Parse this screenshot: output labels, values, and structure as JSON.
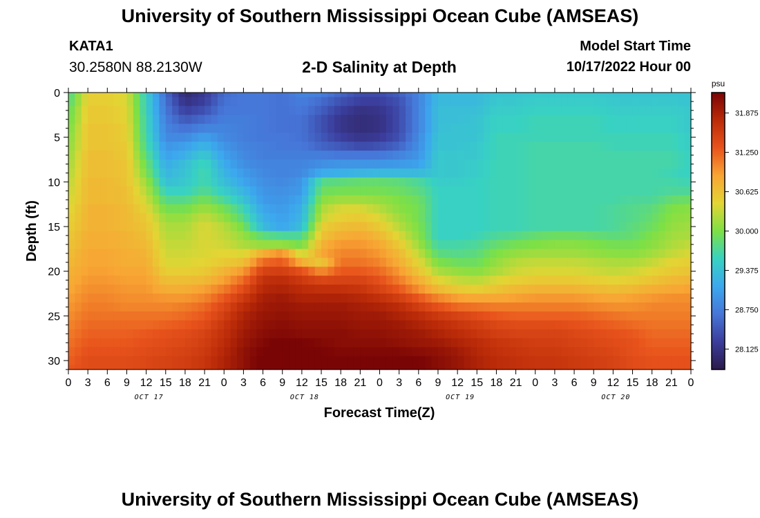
{
  "page": {
    "title": "University of Southern Mississippi Ocean Cube (AMSEAS)",
    "station": "KATA1",
    "coords": "30.2580N  88.2130W",
    "subtitle": "2-D Salinity at Depth",
    "model_start_label": "Model Start Time",
    "model_start_value": "10/17/2022 Hour 00",
    "title_bottom": "University of Southern Mississippi Ocean Cube (AMSEAS)"
  },
  "chart_data": {
    "type": "heatmap",
    "title": "2-D Salinity at Depth",
    "xlabel": "Forecast Time(Z)",
    "ylabel": "Depth (ft)",
    "x_unit": "hours since model start (10/17/2022 Hour 00)",
    "x": [
      0,
      3,
      6,
      9,
      12,
      15,
      18,
      21,
      24,
      27,
      30,
      33,
      36,
      39,
      42,
      45,
      48,
      51,
      54,
      57,
      60,
      63,
      66,
      69,
      72,
      75,
      78,
      81,
      84,
      87,
      90,
      93,
      96
    ],
    "xlim": [
      0,
      96
    ],
    "x_tick_labels": [
      "0",
      "3",
      "6",
      "9",
      "12",
      "15",
      "18",
      "21",
      "0",
      "3",
      "6",
      "9",
      "12",
      "15",
      "18",
      "21",
      "0",
      "3",
      "6",
      "9",
      "12",
      "15",
      "18",
      "21",
      "0",
      "3",
      "6",
      "9",
      "12",
      "15",
      "18",
      "21",
      "0"
    ],
    "date_labels": [
      {
        "label": "OCT 17",
        "x": 12
      },
      {
        "label": "OCT 18",
        "x": 36
      },
      {
        "label": "OCT 19",
        "x": 60
      },
      {
        "label": "OCT 20",
        "x": 84
      }
    ],
    "ylim": [
      0,
      31
    ],
    "y_ticks": [
      0,
      5,
      10,
      15,
      20,
      25,
      30
    ],
    "y_reversed": true,
    "depths": [
      0,
      1,
      2,
      3,
      4,
      5,
      6,
      7,
      8,
      9,
      10,
      11,
      12,
      13,
      14,
      15,
      16,
      17,
      18,
      19,
      20,
      21,
      22,
      23,
      24,
      25,
      26,
      27,
      28,
      29,
      30,
      31
    ],
    "colorbar": {
      "unit": "psu",
      "range": [
        27.8,
        32.2
      ],
      "ticks": [
        28.125,
        28.75,
        29.375,
        30.0,
        30.625,
        31.25,
        31.875
      ],
      "tick_labels": [
        "28.125",
        "28.750",
        "29.375",
        "30.000",
        "30.625",
        "31.250",
        "31.875"
      ],
      "colors": [
        "#2b1a4a",
        "#3b3d9c",
        "#4676d8",
        "#3ca8ee",
        "#38d2c2",
        "#7de045",
        "#e3d534",
        "#f8a534",
        "#e8531c",
        "#bb2b08",
        "#7a0505"
      ]
    },
    "salinity_psu": [
      [
        29.7,
        30.5,
        30.5,
        30.4,
        29.5,
        28.6,
        28.0,
        28.2,
        28.6,
        28.7,
        28.7,
        28.65,
        28.8,
        28.75,
        28.55,
        28.35,
        28.35,
        28.5,
        28.8,
        29.3,
        29.3,
        29.3,
        29.4,
        29.4,
        29.45,
        29.45,
        29.45,
        29.45,
        29.4,
        29.4,
        29.4,
        29.4,
        29.4
      ],
      [
        29.75,
        30.5,
        30.5,
        30.4,
        29.55,
        28.65,
        28.1,
        28.25,
        28.65,
        28.7,
        28.7,
        28.65,
        28.75,
        28.6,
        28.4,
        28.25,
        28.25,
        28.4,
        28.8,
        29.3,
        29.3,
        29.3,
        29.45,
        29.45,
        29.5,
        29.5,
        29.5,
        29.5,
        29.45,
        29.45,
        29.45,
        29.45,
        29.4
      ],
      [
        29.85,
        30.55,
        30.55,
        30.45,
        29.55,
        28.7,
        28.25,
        28.4,
        28.7,
        28.7,
        28.7,
        28.65,
        28.7,
        28.5,
        28.25,
        28.1,
        28.15,
        28.35,
        28.8,
        29.35,
        29.35,
        29.35,
        29.5,
        29.5,
        29.55,
        29.55,
        29.55,
        29.55,
        29.5,
        29.5,
        29.5,
        29.5,
        29.45
      ],
      [
        29.9,
        30.55,
        30.55,
        30.45,
        29.6,
        28.75,
        28.45,
        28.6,
        28.75,
        28.75,
        28.7,
        28.65,
        28.65,
        28.4,
        28.15,
        28.05,
        28.1,
        28.35,
        28.8,
        29.35,
        29.35,
        29.4,
        29.55,
        29.55,
        29.6,
        29.6,
        29.6,
        29.6,
        29.55,
        29.55,
        29.55,
        29.55,
        29.45
      ],
      [
        29.95,
        30.6,
        30.6,
        30.5,
        29.6,
        28.8,
        28.65,
        28.8,
        28.8,
        28.75,
        28.7,
        28.65,
        28.65,
        28.4,
        28.15,
        28.05,
        28.1,
        28.35,
        28.8,
        29.35,
        29.4,
        29.4,
        29.55,
        29.55,
        29.6,
        29.6,
        29.6,
        29.6,
        29.55,
        29.55,
        29.55,
        29.55,
        29.45
      ],
      [
        30.0,
        30.6,
        30.6,
        30.5,
        29.65,
        28.85,
        28.85,
        29.05,
        28.85,
        28.75,
        28.7,
        28.7,
        28.65,
        28.45,
        28.25,
        28.15,
        28.2,
        28.4,
        28.85,
        29.4,
        29.4,
        29.4,
        29.6,
        29.6,
        29.6,
        29.6,
        29.6,
        29.6,
        29.6,
        29.6,
        29.6,
        29.6,
        29.5
      ],
      [
        30.05,
        30.6,
        30.6,
        30.55,
        29.7,
        28.95,
        29.05,
        29.25,
        28.95,
        28.8,
        28.75,
        28.7,
        28.7,
        28.55,
        28.45,
        28.35,
        28.4,
        28.55,
        28.9,
        29.4,
        29.4,
        29.45,
        29.6,
        29.6,
        29.65,
        29.65,
        29.65,
        29.65,
        29.6,
        29.6,
        29.6,
        29.6,
        29.5
      ],
      [
        30.1,
        30.65,
        30.65,
        30.55,
        29.8,
        29.05,
        29.2,
        29.45,
        29.05,
        28.85,
        28.75,
        28.75,
        28.75,
        28.75,
        28.7,
        28.7,
        28.7,
        28.8,
        28.95,
        29.45,
        29.45,
        29.45,
        29.6,
        29.6,
        29.65,
        29.65,
        29.65,
        29.65,
        29.65,
        29.65,
        29.65,
        29.65,
        29.55
      ],
      [
        30.15,
        30.65,
        30.65,
        30.6,
        29.9,
        29.15,
        29.35,
        29.6,
        29.15,
        28.9,
        28.8,
        28.8,
        28.8,
        28.9,
        28.95,
        28.95,
        28.95,
        29.0,
        29.05,
        29.45,
        29.45,
        29.5,
        29.6,
        29.6,
        29.65,
        29.65,
        29.65,
        29.65,
        29.65,
        29.65,
        29.65,
        29.65,
        29.55
      ],
      [
        30.2,
        30.65,
        30.65,
        30.6,
        30.0,
        29.25,
        29.4,
        29.65,
        29.25,
        29.0,
        28.85,
        28.8,
        28.85,
        29.15,
        29.2,
        29.25,
        29.3,
        29.3,
        29.3,
        29.45,
        29.45,
        29.5,
        29.6,
        29.6,
        29.65,
        29.65,
        29.65,
        29.65,
        29.65,
        29.65,
        29.65,
        29.6,
        29.55
      ],
      [
        30.25,
        30.7,
        30.7,
        30.6,
        30.15,
        29.35,
        29.45,
        29.65,
        29.35,
        29.1,
        28.9,
        28.85,
        28.95,
        29.75,
        29.8,
        29.85,
        29.85,
        29.8,
        29.7,
        29.5,
        29.5,
        29.55,
        29.6,
        29.6,
        29.65,
        29.65,
        29.65,
        29.65,
        29.65,
        29.65,
        29.65,
        29.65,
        29.6
      ],
      [
        30.3,
        30.7,
        30.7,
        30.65,
        30.25,
        29.55,
        29.55,
        29.75,
        29.5,
        29.25,
        28.95,
        28.9,
        29.0,
        29.9,
        29.95,
        29.95,
        29.95,
        29.9,
        29.8,
        29.55,
        29.55,
        29.55,
        29.6,
        29.6,
        29.65,
        29.65,
        29.65,
        29.65,
        29.65,
        29.65,
        29.65,
        29.7,
        29.7
      ],
      [
        30.35,
        30.7,
        30.7,
        30.65,
        30.35,
        29.75,
        29.75,
        29.95,
        29.7,
        29.4,
        29.0,
        28.95,
        29.1,
        30.05,
        30.15,
        30.15,
        30.1,
        30.0,
        29.9,
        29.55,
        29.55,
        29.55,
        29.6,
        29.6,
        29.65,
        29.65,
        29.65,
        29.65,
        29.65,
        29.7,
        29.7,
        29.85,
        29.9
      ],
      [
        30.4,
        30.75,
        30.75,
        30.7,
        30.45,
        29.95,
        29.95,
        30.15,
        29.95,
        29.6,
        29.1,
        29.0,
        29.2,
        30.2,
        30.4,
        30.4,
        30.25,
        30.05,
        29.95,
        29.55,
        29.55,
        29.55,
        29.6,
        29.6,
        29.65,
        29.65,
        29.65,
        29.65,
        29.7,
        29.75,
        29.8,
        30.0,
        30.05
      ],
      [
        30.45,
        30.75,
        30.75,
        30.7,
        30.55,
        30.1,
        30.1,
        30.3,
        30.1,
        29.75,
        29.2,
        29.05,
        29.25,
        30.3,
        30.5,
        30.55,
        30.4,
        30.15,
        29.95,
        29.55,
        29.55,
        29.55,
        29.6,
        29.6,
        29.65,
        29.65,
        29.65,
        29.65,
        29.7,
        29.75,
        29.85,
        30.05,
        30.1
      ],
      [
        30.5,
        30.75,
        30.75,
        30.7,
        30.6,
        30.2,
        30.2,
        30.4,
        30.25,
        29.95,
        29.3,
        29.1,
        29.35,
        30.5,
        30.65,
        30.7,
        30.55,
        30.25,
        30.0,
        29.55,
        29.55,
        29.55,
        29.6,
        29.6,
        29.65,
        29.65,
        29.65,
        29.65,
        29.7,
        29.8,
        29.9,
        30.1,
        30.15
      ],
      [
        30.55,
        30.8,
        30.8,
        30.75,
        30.65,
        30.25,
        30.25,
        30.4,
        30.3,
        30.1,
        29.8,
        29.7,
        29.7,
        30.6,
        30.8,
        30.85,
        30.7,
        30.4,
        30.05,
        29.55,
        29.55,
        29.6,
        29.7,
        29.75,
        29.85,
        29.9,
        29.9,
        29.85,
        29.8,
        29.85,
        30.0,
        30.15,
        30.2
      ],
      [
        30.6,
        30.8,
        30.8,
        30.75,
        30.7,
        30.3,
        30.3,
        30.4,
        30.35,
        30.2,
        30.1,
        30.1,
        29.95,
        30.75,
        30.95,
        30.95,
        30.85,
        30.55,
        30.15,
        29.65,
        29.65,
        29.7,
        29.85,
        29.95,
        30.0,
        30.05,
        30.05,
        30.0,
        29.95,
        29.95,
        30.05,
        30.2,
        30.3
      ],
      [
        30.65,
        30.85,
        30.85,
        30.8,
        30.75,
        30.35,
        30.35,
        30.4,
        30.45,
        30.4,
        30.8,
        31.0,
        30.3,
        30.85,
        31.05,
        31.05,
        30.95,
        30.7,
        30.3,
        29.8,
        29.75,
        29.8,
        30.0,
        30.1,
        30.15,
        30.15,
        30.15,
        30.1,
        30.05,
        30.05,
        30.15,
        30.3,
        30.4
      ],
      [
        30.7,
        30.85,
        30.85,
        30.8,
        30.8,
        30.4,
        30.4,
        30.45,
        30.55,
        30.65,
        31.2,
        31.3,
        30.8,
        30.55,
        31.15,
        31.15,
        31.05,
        30.8,
        30.45,
        30.0,
        29.9,
        29.9,
        30.1,
        30.25,
        30.3,
        30.3,
        30.3,
        30.25,
        30.2,
        30.2,
        30.3,
        30.45,
        30.5
      ],
      [
        30.75,
        30.9,
        30.9,
        30.85,
        30.85,
        30.5,
        30.5,
        30.55,
        30.75,
        30.95,
        31.5,
        31.55,
        31.35,
        31.0,
        31.3,
        31.3,
        31.2,
        30.95,
        30.6,
        30.2,
        30.1,
        30.05,
        30.2,
        30.35,
        30.4,
        30.4,
        30.4,
        30.35,
        30.3,
        30.35,
        30.45,
        30.55,
        30.6
      ],
      [
        30.8,
        30.95,
        30.95,
        30.9,
        30.9,
        30.65,
        30.65,
        30.7,
        30.9,
        31.2,
        31.7,
        31.75,
        31.6,
        31.45,
        31.5,
        31.5,
        31.35,
        31.1,
        30.8,
        30.45,
        30.3,
        30.25,
        30.4,
        30.5,
        30.55,
        30.55,
        30.55,
        30.5,
        30.45,
        30.5,
        30.6,
        30.7,
        30.75
      ],
      [
        30.85,
        31.0,
        31.0,
        30.95,
        30.95,
        30.8,
        30.8,
        30.9,
        31.1,
        31.4,
        31.8,
        31.85,
        31.75,
        31.7,
        31.7,
        31.65,
        31.5,
        31.3,
        31.0,
        30.7,
        30.55,
        30.5,
        30.6,
        30.7,
        30.75,
        30.75,
        30.75,
        30.7,
        30.65,
        30.7,
        30.8,
        30.85,
        30.9
      ],
      [
        30.9,
        31.05,
        31.05,
        31.0,
        31.0,
        30.95,
        30.95,
        31.05,
        31.3,
        31.6,
        31.9,
        31.95,
        31.85,
        31.85,
        31.85,
        31.8,
        31.7,
        31.55,
        31.3,
        31.05,
        30.9,
        30.85,
        30.85,
        30.9,
        30.95,
        30.95,
        30.95,
        30.9,
        30.85,
        30.9,
        30.95,
        31.0,
        31.0
      ],
      [
        30.95,
        31.1,
        31.1,
        31.05,
        31.05,
        31.05,
        31.1,
        31.2,
        31.45,
        31.75,
        31.95,
        32.0,
        31.95,
        31.95,
        31.95,
        31.9,
        31.85,
        31.75,
        31.55,
        31.35,
        31.2,
        31.15,
        31.1,
        31.1,
        31.1,
        31.1,
        31.1,
        31.05,
        31.0,
        31.0,
        31.05,
        31.05,
        31.05
      ],
      [
        31.0,
        31.15,
        31.15,
        31.15,
        31.15,
        31.15,
        31.2,
        31.3,
        31.55,
        31.85,
        32.0,
        32.05,
        32.0,
        32.0,
        32.0,
        31.95,
        31.95,
        31.85,
        31.75,
        31.6,
        31.5,
        31.4,
        31.3,
        31.25,
        31.25,
        31.25,
        31.25,
        31.2,
        31.15,
        31.1,
        31.1,
        31.1,
        31.1
      ],
      [
        31.05,
        31.2,
        31.2,
        31.2,
        31.2,
        31.25,
        31.3,
        31.4,
        31.65,
        31.9,
        32.05,
        32.1,
        32.05,
        32.05,
        32.05,
        32.0,
        32.0,
        31.95,
        31.85,
        31.75,
        31.65,
        31.55,
        31.45,
        31.4,
        31.4,
        31.4,
        31.35,
        31.3,
        31.25,
        31.2,
        31.15,
        31.15,
        31.15
      ],
      [
        31.1,
        31.25,
        31.25,
        31.25,
        31.3,
        31.35,
        31.4,
        31.5,
        31.7,
        31.95,
        32.1,
        32.15,
        32.1,
        32.1,
        32.1,
        32.05,
        32.05,
        32.0,
        31.95,
        31.85,
        31.75,
        31.65,
        31.55,
        31.5,
        31.5,
        31.5,
        31.45,
        31.4,
        31.35,
        31.3,
        31.2,
        31.2,
        31.2
      ],
      [
        31.15,
        31.3,
        31.3,
        31.3,
        31.35,
        31.4,
        31.45,
        31.55,
        31.75,
        32.0,
        32.15,
        32.25,
        32.2,
        32.15,
        32.1,
        32.1,
        32.1,
        32.05,
        32.0,
        31.95,
        31.85,
        31.75,
        31.65,
        31.6,
        31.55,
        31.55,
        31.5,
        31.45,
        31.4,
        31.35,
        31.25,
        31.25,
        31.25
      ],
      [
        31.2,
        31.35,
        31.35,
        31.35,
        31.4,
        31.45,
        31.5,
        31.6,
        31.8,
        32.05,
        32.2,
        32.35,
        32.3,
        32.2,
        32.15,
        32.15,
        32.15,
        32.15,
        32.1,
        32.05,
        31.95,
        31.8,
        31.7,
        31.65,
        31.6,
        31.6,
        31.55,
        31.5,
        31.45,
        31.35,
        31.3,
        31.3,
        31.3
      ],
      [
        31.25,
        31.4,
        31.4,
        31.4,
        31.45,
        31.5,
        31.55,
        31.65,
        31.85,
        32.05,
        32.25,
        32.4,
        32.35,
        32.25,
        32.2,
        32.2,
        32.2,
        32.25,
        32.2,
        32.1,
        32.0,
        31.85,
        31.75,
        31.7,
        31.65,
        31.65,
        31.6,
        31.55,
        31.5,
        31.4,
        31.35,
        31.35,
        31.35
      ],
      [
        31.3,
        31.4,
        31.4,
        31.4,
        31.45,
        31.5,
        31.55,
        31.65,
        31.85,
        32.05,
        32.25,
        32.4,
        32.35,
        32.25,
        32.2,
        32.2,
        32.2,
        32.25,
        32.2,
        32.1,
        32.0,
        31.85,
        31.75,
        31.7,
        31.65,
        31.65,
        31.6,
        31.55,
        31.5,
        31.4,
        31.35,
        31.35,
        31.35
      ]
    ]
  }
}
